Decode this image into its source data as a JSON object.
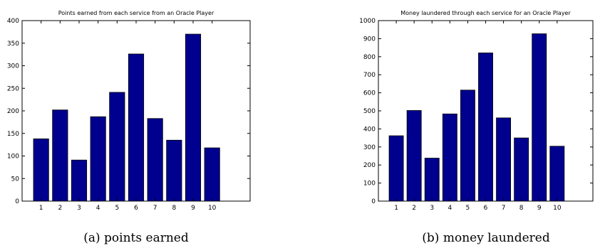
{
  "chart_data": [
    {
      "type": "bar",
      "title": "Points earned from each service from an Oracle Player",
      "caption": "(a) points earned",
      "categories": [
        "1",
        "2",
        "3",
        "4",
        "5",
        "6",
        "7",
        "8",
        "9",
        "10"
      ],
      "values": [
        138,
        202,
        91,
        187,
        241,
        326,
        183,
        135,
        370,
        118
      ],
      "xlim": [
        0,
        12
      ],
      "ylim": [
        0,
        400
      ],
      "yticks": [
        0,
        50,
        100,
        150,
        200,
        250,
        300,
        350,
        400
      ],
      "bar_color": "#00008f",
      "grid": false
    },
    {
      "type": "bar",
      "title": "Money laundered through each service for an Oracle Player",
      "caption": "(b) money laundered",
      "categories": [
        "1",
        "2",
        "3",
        "4",
        "5",
        "6",
        "7",
        "8",
        "9",
        "10"
      ],
      "values": [
        362,
        502,
        238,
        483,
        615,
        821,
        461,
        350,
        927,
        304
      ],
      "xlim": [
        0,
        12
      ],
      "ylim": [
        0,
        1000
      ],
      "yticks": [
        0,
        100,
        200,
        300,
        400,
        500,
        600,
        700,
        800,
        900,
        1000
      ],
      "bar_color": "#00008f",
      "grid": false
    }
  ]
}
